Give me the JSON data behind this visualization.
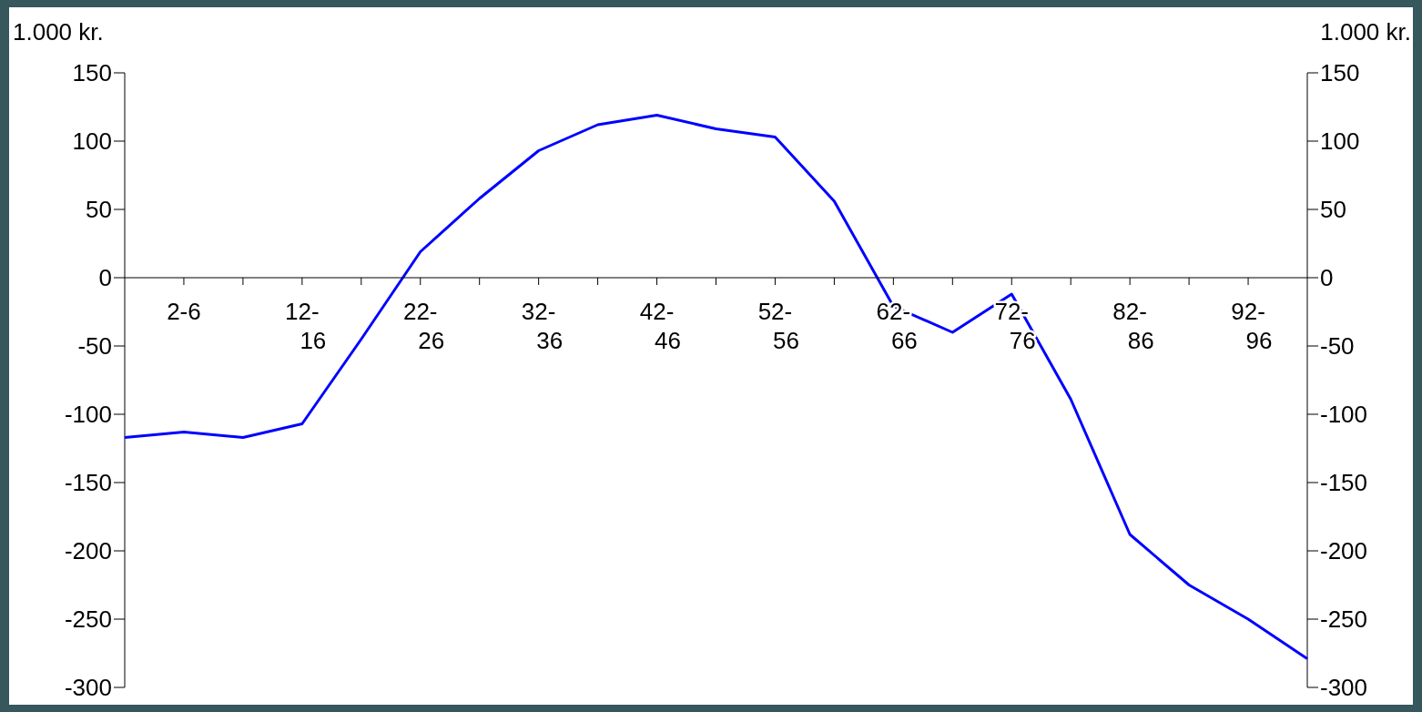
{
  "chart_data": {
    "type": "line",
    "ylabel": "1.000 kr.",
    "y2label": "1.000 kr.",
    "categories": [
      null,
      "2-6",
      null,
      "12-16",
      null,
      "22-26",
      null,
      "32-36",
      null,
      "42-46",
      null,
      "52-56",
      null,
      "62-66",
      null,
      "72-76",
      null,
      "82-86",
      null,
      "92-96",
      null
    ],
    "series": [
      {
        "color": "#0000ff",
        "values": [
          -117,
          -113,
          -117,
          -107,
          -45,
          19,
          58,
          93,
          112,
          119,
          109,
          103,
          56,
          -21,
          -40,
          -12,
          -89,
          -188,
          -225,
          -250,
          -279
        ]
      }
    ],
    "ylim": [
      -300,
      150
    ],
    "yticks": [
      -300,
      -250,
      -200,
      -150,
      -100,
      -50,
      0,
      50,
      100,
      150
    ],
    "y2lim": [
      -300,
      150
    ],
    "y2ticks": [
      -300,
      -250,
      -200,
      -150,
      -100,
      -50,
      0,
      50,
      100,
      150
    ],
    "grid": false,
    "marker": "none",
    "line_style": "solid"
  }
}
